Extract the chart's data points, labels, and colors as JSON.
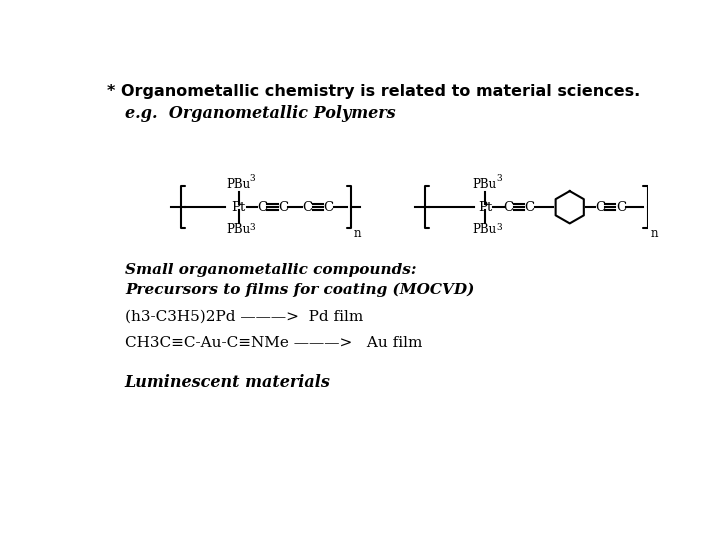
{
  "background_color": "#ffffff",
  "title_line": "* Organometallic chemistry is related to material sciences.",
  "subtitle_line": "e.g.  Organometallic Polymers",
  "small_compounds_line1": "Small organometallic compounds:",
  "small_compounds_line2": "Precursors to films for coating (MOCVD)",
  "reaction1": "(h3-C3H5)2Pd ———>  Pd film",
  "reaction2": "CH3C≡C-Au-C≡NMe ———>   Au film",
  "luminescent": "Luminescent materials",
  "title_fontsize": 11.5,
  "subtitle_fontsize": 11.5,
  "body_fontsize": 11,
  "chem_fontsize": 10
}
